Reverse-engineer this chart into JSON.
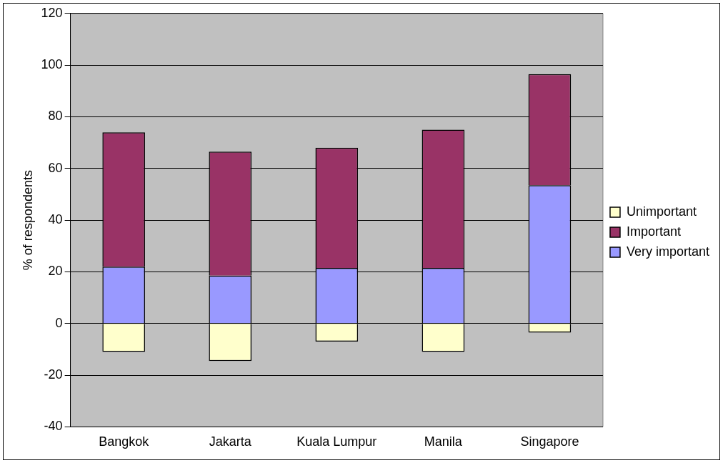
{
  "chart_data": {
    "type": "bar",
    "stacked": true,
    "ylabel": "% of respondents",
    "categories": [
      "Bangkok",
      "Jakarta",
      "Kuala Lumpur",
      "Manila",
      "Singapore"
    ],
    "series": [
      {
        "name": "Very important",
        "color": "#9999ff",
        "values": [
          22,
          18.5,
          21.5,
          21.5,
          53.5
        ]
      },
      {
        "name": "Important",
        "color": "#993366",
        "values": [
          52,
          48,
          46.5,
          53.5,
          43
        ]
      },
      {
        "name": "Unimportant",
        "color": "#ffffcc",
        "values": [
          -11,
          -14.5,
          -7,
          -11,
          -3.5
        ]
      }
    ],
    "ylim": [
      -40,
      120
    ],
    "yticks": [
      -40,
      -20,
      0,
      20,
      40,
      60,
      80,
      100,
      120
    ],
    "grid": "y",
    "legend": "right"
  }
}
